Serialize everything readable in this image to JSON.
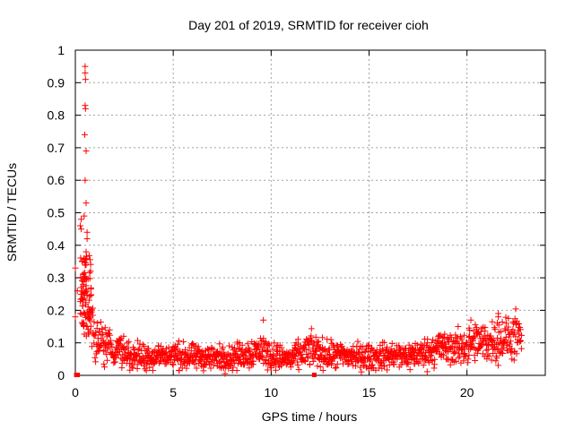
{
  "chart_data": {
    "type": "scatter",
    "title": "Day 201 of 2019, SRMTID for receiver cioh",
    "xlabel": "GPS time / hours",
    "ylabel": "SRMTID / TECUs",
    "xlim": [
      0,
      24
    ],
    "ylim": [
      0,
      1
    ],
    "xticks": [
      0,
      5,
      10,
      15,
      20
    ],
    "xtick_labels": [
      "0",
      "5",
      "10",
      "15",
      "20"
    ],
    "yticks": [
      0,
      0.1,
      0.2,
      0.3,
      0.4,
      0.5,
      0.6,
      0.7,
      0.8,
      0.9,
      1
    ],
    "ytick_labels": [
      "0",
      "0.1",
      "0.2",
      "0.3",
      "0.4",
      "0.5",
      "0.6",
      "0.7",
      "0.8",
      "0.9",
      "1"
    ],
    "grid": true,
    "marker": "+",
    "series_color": "#ff0000",
    "trend": {
      "description": "approximate central trend of the point cloud",
      "x": [
        0.3,
        0.6,
        1.0,
        1.5,
        2.0,
        3.0,
        4.0,
        5.0,
        6.0,
        7.0,
        8.0,
        9.0,
        9.5,
        10.0,
        11.0,
        12.0,
        13.0,
        14.0,
        15.0,
        16.0,
        17.0,
        18.0,
        18.5,
        19.0,
        20.0,
        20.5,
        21.0,
        21.5,
        22.0,
        22.5,
        22.8
      ],
      "y": [
        0.22,
        0.2,
        0.12,
        0.1,
        0.08,
        0.06,
        0.06,
        0.06,
        0.055,
        0.055,
        0.055,
        0.07,
        0.08,
        0.06,
        0.05,
        0.08,
        0.06,
        0.06,
        0.055,
        0.06,
        0.06,
        0.07,
        0.09,
        0.08,
        0.09,
        0.1,
        0.1,
        0.11,
        0.11,
        0.12,
        0.1
      ]
    },
    "notable_points": [
      {
        "x": 0.5,
        "y": 0.95
      },
      {
        "x": 0.5,
        "y": 0.93
      },
      {
        "x": 0.52,
        "y": 0.91
      },
      {
        "x": 0.5,
        "y": 0.83
      },
      {
        "x": 0.52,
        "y": 0.82
      },
      {
        "x": 0.48,
        "y": 0.74
      },
      {
        "x": 0.55,
        "y": 0.69
      },
      {
        "x": 0.5,
        "y": 0.6
      },
      {
        "x": 0.55,
        "y": 0.53
      },
      {
        "x": 0.45,
        "y": 0.49
      },
      {
        "x": 0.3,
        "y": 0.48
      },
      {
        "x": 0.25,
        "y": 0.46
      },
      {
        "x": 0.3,
        "y": 0.45
      },
      {
        "x": 0.6,
        "y": 0.44
      },
      {
        "x": 0.6,
        "y": 0.42
      },
      {
        "x": 0.55,
        "y": 0.38
      },
      {
        "x": 0.45,
        "y": 0.36
      },
      {
        "x": 0.35,
        "y": 0.35
      },
      {
        "x": 0.0,
        "y": 0.33
      },
      {
        "x": 0.55,
        "y": 0.34
      },
      {
        "x": 0.4,
        "y": 0.31
      },
      {
        "x": 0.5,
        "y": 0.3
      },
      {
        "x": 0.4,
        "y": 0.28
      },
      {
        "x": 0.1,
        "y": 0.26
      },
      {
        "x": 0.3,
        "y": 0.27
      },
      {
        "x": 0.0,
        "y": 0.18
      },
      {
        "x": 9.6,
        "y": 0.17
      },
      {
        "x": 21.6,
        "y": 0.19
      },
      {
        "x": 21.6,
        "y": 0.18
      },
      {
        "x": 20.2,
        "y": 0.17
      }
    ],
    "zero_points": [
      {
        "x": 0.05,
        "y": 0.0
      },
      {
        "x": 0.12,
        "y": 0.0
      },
      {
        "x": 12.2,
        "y": 0.0
      }
    ]
  }
}
